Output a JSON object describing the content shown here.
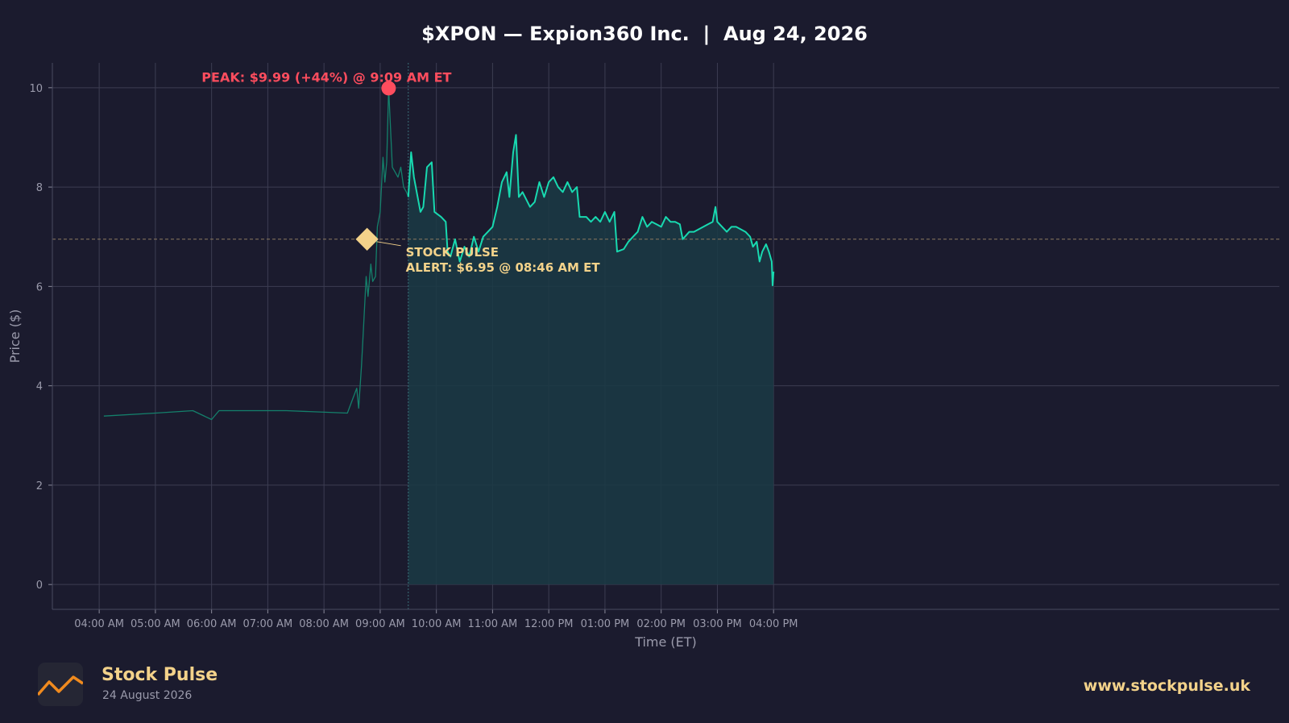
{
  "title": "$XPON — Expion360 Inc.  |  Aug 24, 2026",
  "chart_data": {
    "type": "line",
    "x_axis": {
      "label": "Time (ET)",
      "ticks": [
        "04:00 AM",
        "05:00 AM",
        "06:00 AM",
        "07:00 AM",
        "08:00 AM",
        "09:00 AM",
        "10:00 AM",
        "11:00 AM",
        "12:00 PM",
        "01:00 PM",
        "02:00 PM",
        "03:00 PM",
        "04:00 PM"
      ],
      "range_minutes_after_0400": [
        -50,
        1260
      ]
    },
    "y_axis": {
      "label": "Price ($)",
      "ticks": [
        0,
        2,
        4,
        6,
        8,
        10
      ],
      "range": [
        -0.5,
        10.5
      ]
    },
    "grid": true,
    "market_open_marker": "09:30 AM",
    "alert_level": 6.95,
    "colors": {
      "background": "#1b1b2e",
      "premarket_line": "#14806b",
      "regular_line": "#18d9b0",
      "fill": "#1a3a44",
      "peak": "#ff4d5e",
      "alert": "#f3d28a",
      "grid": "#3c3d52"
    },
    "series": [
      {
        "segment": "pre-market (04:00–09:30)",
        "points": [
          [
            "04:05",
            3.39
          ],
          [
            "05:00",
            3.45
          ],
          [
            "05:40",
            3.5
          ],
          [
            "06:00",
            3.32
          ],
          [
            "06:08",
            3.5
          ],
          [
            "07:20",
            3.5
          ],
          [
            "08:25",
            3.45
          ],
          [
            "08:35",
            3.95
          ],
          [
            "08:37",
            3.55
          ],
          [
            "08:40",
            4.4
          ],
          [
            "08:42",
            5.1
          ],
          [
            "08:45",
            6.2
          ],
          [
            "08:47",
            5.8
          ],
          [
            "08:50",
            6.45
          ],
          [
            "08:52",
            6.1
          ],
          [
            "08:55",
            6.2
          ],
          [
            "08:57",
            7.2
          ],
          [
            "09:00",
            7.5
          ],
          [
            "09:03",
            8.6
          ],
          [
            "09:05",
            8.1
          ],
          [
            "09:07",
            8.5
          ],
          [
            "09:09",
            9.99
          ],
          [
            "09:11",
            9.2
          ],
          [
            "09:13",
            8.4
          ],
          [
            "09:16",
            8.3
          ],
          [
            "09:19",
            8.2
          ],
          [
            "09:22",
            8.4
          ],
          [
            "09:25",
            8.0
          ],
          [
            "09:28",
            7.9
          ],
          [
            "09:30",
            7.8
          ]
        ]
      },
      {
        "segment": "regular session (09:30–16:00)",
        "points": [
          [
            "09:30",
            7.8
          ],
          [
            "09:33",
            8.7
          ],
          [
            "09:36",
            8.2
          ],
          [
            "09:40",
            7.8
          ],
          [
            "09:43",
            7.5
          ],
          [
            "09:46",
            7.6
          ],
          [
            "09:50",
            8.4
          ],
          [
            "09:55",
            8.5
          ],
          [
            "09:58",
            7.5
          ],
          [
            "10:05",
            7.4
          ],
          [
            "10:10",
            7.3
          ],
          [
            "10:12",
            6.7
          ],
          [
            "10:15",
            6.6
          ],
          [
            "10:20",
            6.95
          ],
          [
            "10:25",
            6.5
          ],
          [
            "10:30",
            6.8
          ],
          [
            "10:35",
            6.6
          ],
          [
            "10:40",
            7.0
          ],
          [
            "10:45",
            6.7
          ],
          [
            "10:50",
            7.0
          ],
          [
            "10:55",
            7.1
          ],
          [
            "11:00",
            7.2
          ],
          [
            "11:05",
            7.6
          ],
          [
            "11:10",
            8.1
          ],
          [
            "11:15",
            8.3
          ],
          [
            "11:18",
            7.8
          ],
          [
            "11:22",
            8.7
          ],
          [
            "11:25",
            9.05
          ],
          [
            "11:28",
            7.8
          ],
          [
            "11:32",
            7.9
          ],
          [
            "11:40",
            7.6
          ],
          [
            "11:45",
            7.7
          ],
          [
            "11:50",
            8.1
          ],
          [
            "11:55",
            7.8
          ],
          [
            "12:00",
            8.1
          ],
          [
            "12:05",
            8.2
          ],
          [
            "12:10",
            8.0
          ],
          [
            "12:15",
            7.9
          ],
          [
            "12:20",
            8.1
          ],
          [
            "12:25",
            7.9
          ],
          [
            "12:30",
            8.0
          ],
          [
            "12:33",
            7.4
          ],
          [
            "12:40",
            7.4
          ],
          [
            "12:45",
            7.3
          ],
          [
            "12:50",
            7.4
          ],
          [
            "12:55",
            7.3
          ],
          [
            "13:00",
            7.5
          ],
          [
            "13:05",
            7.3
          ],
          [
            "13:10",
            7.5
          ],
          [
            "13:13",
            6.7
          ],
          [
            "13:20",
            6.75
          ],
          [
            "13:25",
            6.9
          ],
          [
            "13:30",
            7.0
          ],
          [
            "13:35",
            7.1
          ],
          [
            "13:40",
            7.4
          ],
          [
            "13:45",
            7.2
          ],
          [
            "13:50",
            7.3
          ],
          [
            "13:55",
            7.25
          ],
          [
            "14:00",
            7.2
          ],
          [
            "14:05",
            7.4
          ],
          [
            "14:10",
            7.3
          ],
          [
            "14:15",
            7.3
          ],
          [
            "14:20",
            7.25
          ],
          [
            "14:23",
            6.95
          ],
          [
            "14:30",
            7.1
          ],
          [
            "14:35",
            7.1
          ],
          [
            "14:40",
            7.15
          ],
          [
            "14:45",
            7.2
          ],
          [
            "14:50",
            7.25
          ],
          [
            "14:55",
            7.3
          ],
          [
            "14:58",
            7.6
          ],
          [
            "15:00",
            7.3
          ],
          [
            "15:05",
            7.2
          ],
          [
            "15:10",
            7.1
          ],
          [
            "15:15",
            7.2
          ],
          [
            "15:20",
            7.2
          ],
          [
            "15:25",
            7.15
          ],
          [
            "15:30",
            7.1
          ],
          [
            "15:35",
            7.0
          ],
          [
            "15:38",
            6.8
          ],
          [
            "15:42",
            6.9
          ],
          [
            "15:45",
            6.5
          ],
          [
            "15:48",
            6.7
          ],
          [
            "15:52",
            6.85
          ],
          [
            "15:55",
            6.7
          ],
          [
            "15:58",
            6.5
          ],
          [
            "15:59",
            6.02
          ],
          [
            "16:00",
            6.3
          ]
        ]
      }
    ],
    "annotations": {
      "peak": {
        "time": "09:09",
        "price": 9.99,
        "text": "PEAK: $9.99 (+44%) @ 9:09 AM ET"
      },
      "alert": {
        "time": "08:46",
        "price": 6.95,
        "text_line1": "STOCK PULSE",
        "text_line2": "ALERT: $6.95 @ 08:46 AM ET"
      }
    }
  },
  "footer": {
    "brand": "Stock Pulse",
    "date": "24 August 2026",
    "url": "www.stockpulse.uk",
    "logo_icon": "trend-line-icon"
  }
}
